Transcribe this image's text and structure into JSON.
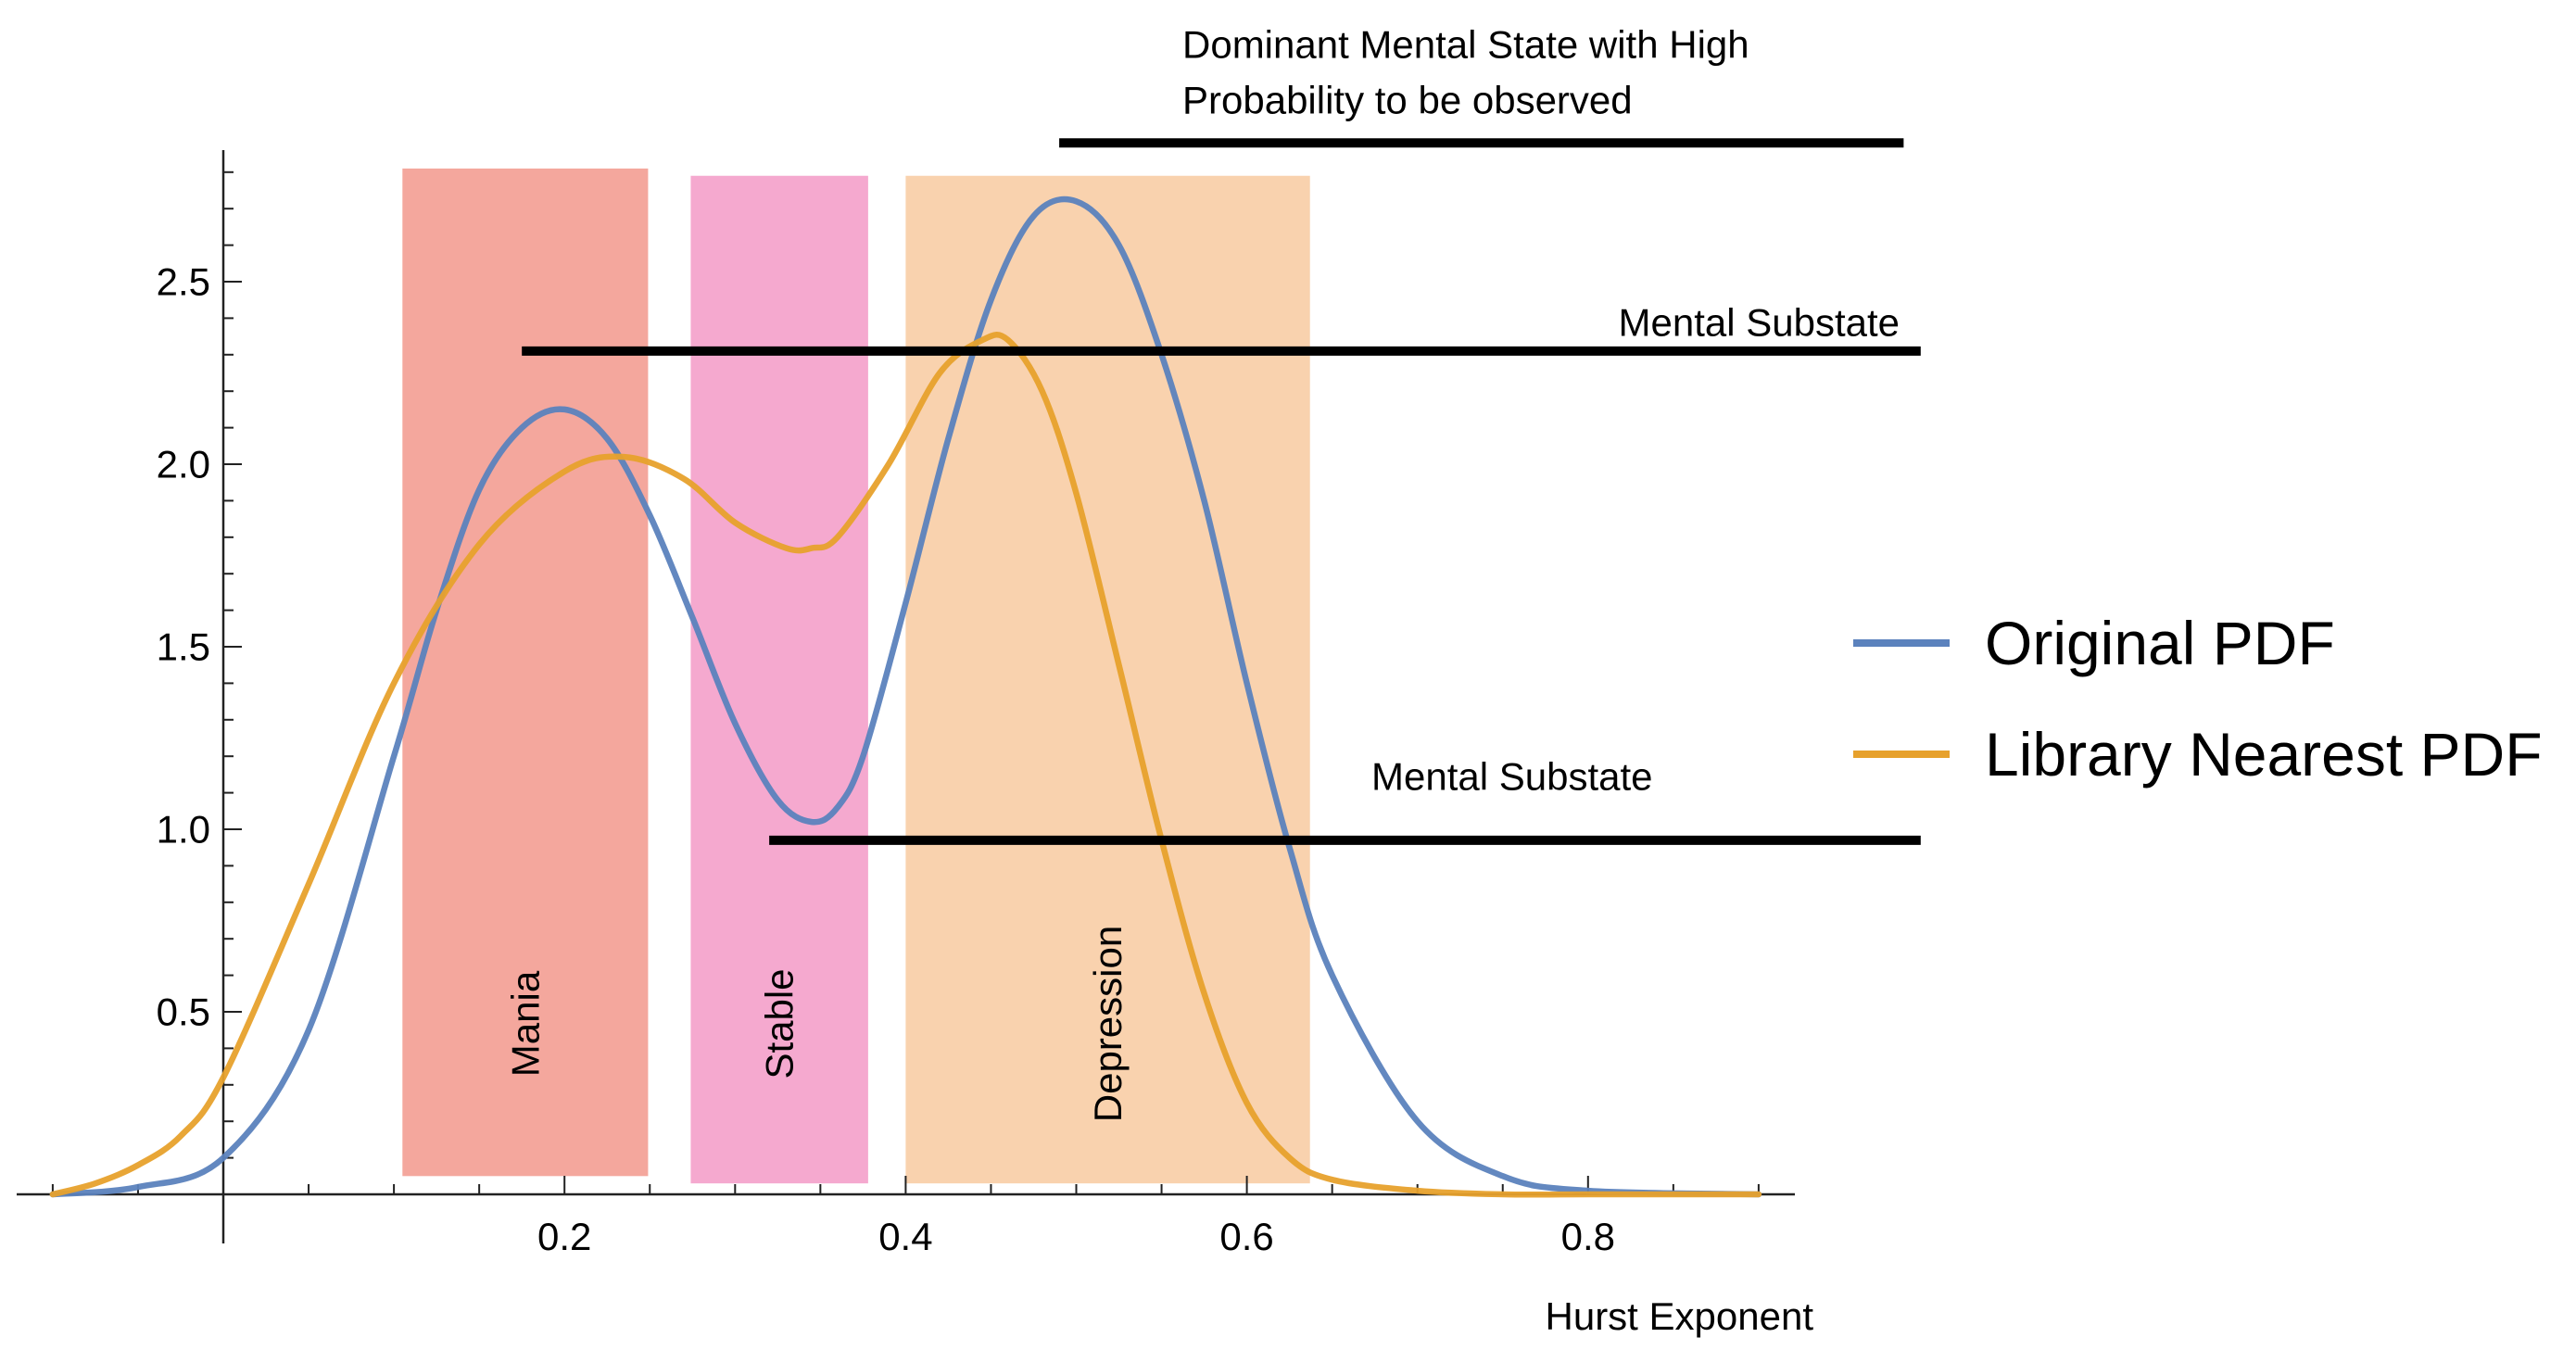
{
  "chart_data": {
    "type": "line",
    "xlabel": "Hurst Exponent",
    "ylabel": "",
    "xlim": [
      -0.1,
      0.9
    ],
    "ylim": [
      0,
      2.8
    ],
    "x_ticks": [
      {
        "value": 0.2,
        "label": "0.2"
      },
      {
        "value": 0.4,
        "label": "0.4"
      },
      {
        "value": 0.6,
        "label": "0.6"
      },
      {
        "value": 0.8,
        "label": "0.8"
      }
    ],
    "y_ticks": [
      {
        "value": 0.5,
        "label": "0.5"
      },
      {
        "value": 1.0,
        "label": "1.0"
      },
      {
        "value": 1.5,
        "label": "1.5"
      },
      {
        "value": 2.0,
        "label": "2.0"
      },
      {
        "value": 2.5,
        "label": "2.5"
      }
    ],
    "legend_position": "right",
    "series": [
      {
        "name": "Original PDF",
        "color": "#5b82bd",
        "x": [
          -0.1,
          -0.05,
          0.0,
          0.05,
          0.1,
          0.125,
          0.15,
          0.175,
          0.2,
          0.225,
          0.25,
          0.275,
          0.3,
          0.325,
          0.345,
          0.36,
          0.375,
          0.4,
          0.425,
          0.45,
          0.475,
          0.5,
          0.525,
          0.55,
          0.575,
          0.6,
          0.625,
          0.65,
          0.7,
          0.75,
          0.8,
          0.9
        ],
        "y": [
          0.0,
          0.02,
          0.1,
          0.45,
          1.2,
          1.6,
          1.93,
          2.1,
          2.15,
          2.07,
          1.86,
          1.58,
          1.29,
          1.08,
          1.02,
          1.06,
          1.2,
          1.62,
          2.07,
          2.45,
          2.68,
          2.72,
          2.6,
          2.3,
          1.9,
          1.4,
          0.95,
          0.6,
          0.2,
          0.05,
          0.01,
          0.0
        ]
      },
      {
        "name": "Library Nearest PDF",
        "color": "#e7a12c",
        "x": [
          -0.1,
          -0.075,
          -0.05,
          -0.025,
          0.0,
          0.05,
          0.1,
          0.15,
          0.2,
          0.235,
          0.27,
          0.3,
          0.33,
          0.345,
          0.36,
          0.39,
          0.42,
          0.445,
          0.46,
          0.48,
          0.5,
          0.525,
          0.55,
          0.575,
          0.6,
          0.625,
          0.65,
          0.7,
          0.75,
          0.8,
          0.9
        ],
        "y": [
          0.0,
          0.03,
          0.08,
          0.16,
          0.32,
          0.85,
          1.4,
          1.78,
          1.98,
          2.02,
          1.96,
          1.84,
          1.77,
          1.77,
          1.8,
          2.0,
          2.25,
          2.34,
          2.34,
          2.2,
          1.92,
          1.45,
          0.97,
          0.55,
          0.25,
          0.1,
          0.04,
          0.01,
          0.0,
          0.0,
          0.0
        ]
      }
    ],
    "bands": [
      {
        "label": "Mania",
        "x0": 0.105,
        "x1": 0.249,
        "y0": 0.05,
        "y1": 2.81,
        "color": "#f4a79d"
      },
      {
        "label": "Stable",
        "x0": 0.274,
        "x1": 0.378,
        "y0": 0.03,
        "y1": 2.79,
        "color": "#f5a9cf"
      },
      {
        "label": "Depression",
        "x0": 0.4,
        "x1": 0.637,
        "y0": 0.03,
        "y1": 2.79,
        "color": "#f9d2ae"
      }
    ],
    "annotations": [
      {
        "text_lines": [
          "Dominant Mental State with High",
          "Probability to be observed"
        ],
        "x0": 0.49,
        "x1": 0.985,
        "y": 2.88
      },
      {
        "text_lines": [
          "Mental Substate"
        ],
        "x0": 0.175,
        "x1": 0.995,
        "y": 2.31
      },
      {
        "text_lines": [
          "Mental Substate"
        ],
        "x0": 0.32,
        "x1": 0.995,
        "y": 0.97
      }
    ]
  }
}
